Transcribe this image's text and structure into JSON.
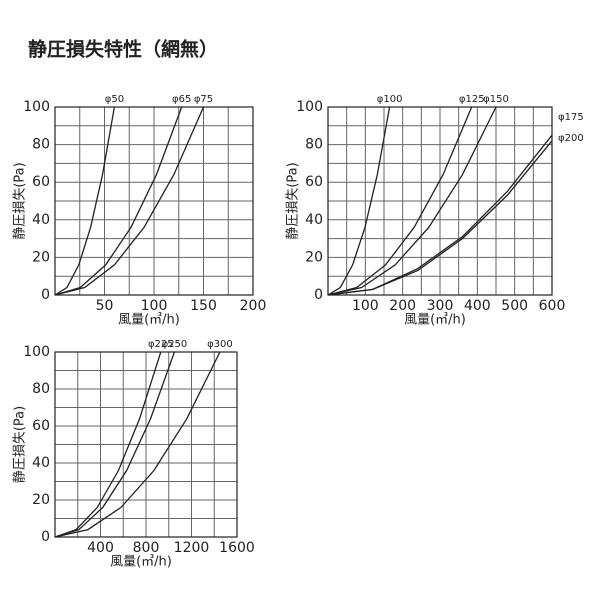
{
  "title": "静圧損失特性（網無）",
  "chart_data": [
    {
      "type": "line",
      "xlabel": "風量(㎥/h)",
      "ylabel": "静圧損失(Pa)",
      "xlim": [
        0,
        200
      ],
      "ylim": [
        0,
        100
      ],
      "xticks": [
        50,
        100,
        150,
        200
      ],
      "yticks": [
        0,
        20,
        40,
        60,
        80,
        100
      ],
      "xgrid": [
        25,
        50,
        75,
        100,
        125,
        150,
        175
      ],
      "ygrid": [
        10,
        20,
        30,
        40,
        50,
        60,
        70,
        80,
        90
      ],
      "color": "#222222",
      "series": [
        {
          "name": "φ50",
          "x": [
            0,
            12,
            24,
            36,
            48,
            60
          ],
          "values": [
            0,
            4,
            16,
            36,
            64,
            100
          ]
        },
        {
          "name": "φ65",
          "x": [
            0,
            25.6,
            51.2,
            76.8,
            102.4,
            128
          ],
          "values": [
            0,
            4,
            16,
            36,
            64,
            100
          ]
        },
        {
          "name": "φ75",
          "x": [
            0,
            30,
            60,
            90,
            120,
            150
          ],
          "values": [
            0,
            4,
            16,
            36,
            64,
            100
          ]
        }
      ]
    },
    {
      "type": "line",
      "xlabel": "風量(㎥/h)",
      "ylabel": "静圧損失(Pa)",
      "xlim": [
        0,
        600
      ],
      "ylim": [
        0,
        100
      ],
      "xticks": [
        100,
        200,
        300,
        400,
        500,
        600
      ],
      "yticks": [
        0,
        20,
        40,
        60,
        80,
        100
      ],
      "xgrid": [
        50,
        100,
        150,
        200,
        250,
        300,
        350,
        400,
        450,
        500,
        550
      ],
      "ygrid": [
        10,
        20,
        30,
        40,
        50,
        60,
        70,
        80,
        90
      ],
      "color": "#222222",
      "series": [
        {
          "name": "φ100",
          "x": [
            0,
            33,
            66,
            99,
            132,
            165
          ],
          "values": [
            0,
            4,
            16,
            36,
            64,
            100
          ]
        },
        {
          "name": "φ125",
          "x": [
            0,
            77,
            154,
            231,
            308,
            385
          ],
          "values": [
            0,
            4,
            16,
            36,
            64,
            100
          ]
        },
        {
          "name": "φ150",
          "x": [
            0,
            90,
            180,
            270,
            360,
            450
          ],
          "values": [
            0,
            4,
            16,
            36,
            64,
            100
          ]
        },
        {
          "name": "φ175",
          "x": [
            0,
            120,
            240,
            360,
            480,
            600
          ],
          "values": [
            0,
            3,
            14,
            31,
            55,
            85
          ]
        },
        {
          "name": "φ200",
          "x": [
            0,
            120,
            240,
            360,
            480,
            600
          ],
          "values": [
            0,
            3,
            13,
            30,
            53,
            82
          ]
        }
      ]
    },
    {
      "type": "line",
      "xlabel": "風量(㎥/h)",
      "ylabel": "静圧損失(Pa)",
      "xlim": [
        0,
        1600
      ],
      "ylim": [
        0,
        100
      ],
      "xticks": [
        400,
        800,
        1200,
        1600
      ],
      "yticks": [
        0,
        20,
        40,
        60,
        80,
        100
      ],
      "xgrid": [
        200,
        400,
        600,
        800,
        1000,
        1200,
        1400
      ],
      "ygrid": [
        10,
        20,
        30,
        40,
        50,
        60,
        70,
        80,
        90
      ],
      "color": "#222222",
      "series": [
        {
          "name": "φ225",
          "x": [
            0,
            186,
            372,
            558,
            744,
            930
          ],
          "values": [
            0,
            4,
            16,
            36,
            64,
            100
          ]
        },
        {
          "name": "φ250",
          "x": [
            0,
            210,
            420,
            630,
            840,
            1050
          ],
          "values": [
            0,
            4,
            16,
            36,
            64,
            100
          ]
        },
        {
          "name": "φ300",
          "x": [
            0,
            290,
            580,
            870,
            1160,
            1450
          ],
          "values": [
            0,
            4,
            16,
            36,
            64,
            100
          ]
        }
      ]
    }
  ]
}
